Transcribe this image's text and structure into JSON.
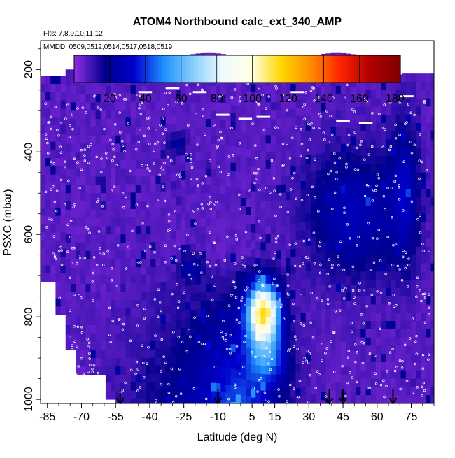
{
  "chart_data": {
    "type": "heatmap",
    "title": "ATOM4 Northbound calc_ext_340_AMP",
    "flights_label": "Flts: 7,8,9,10,11,12",
    "dates_label": "MMDD: 0509,0512,0514,0517,0518,0519",
    "xlabel": "Latitude (deg N)",
    "ylabel": "PSXC (mbar)",
    "xlim": [
      -88,
      85
    ],
    "ylim": [
      1010,
      130
    ],
    "y_reversed": true,
    "x_ticks": [
      -85,
      -70,
      -55,
      -40,
      -25,
      -10,
      5,
      15,
      30,
      45,
      60,
      75
    ],
    "y_ticks": [
      200,
      400,
      600,
      800,
      1000
    ],
    "colorbar": {
      "ticks": [
        20,
        40,
        60,
        80,
        100,
        120,
        140,
        160,
        180
      ],
      "range": [
        0,
        183
      ],
      "colors": [
        "#8a2be2",
        "#00008b",
        "#0000cd",
        "#1e90ff",
        "#87cefa",
        "#f0fbff",
        "#ffffe0",
        "#ffd700",
        "#ff8c00",
        "#ff2400",
        "#b00000",
        "#800000"
      ]
    },
    "arrow_latitudes": [
      -53,
      -10,
      39,
      45,
      67
    ],
    "grid": false,
    "legend": "colorbar top"
  }
}
